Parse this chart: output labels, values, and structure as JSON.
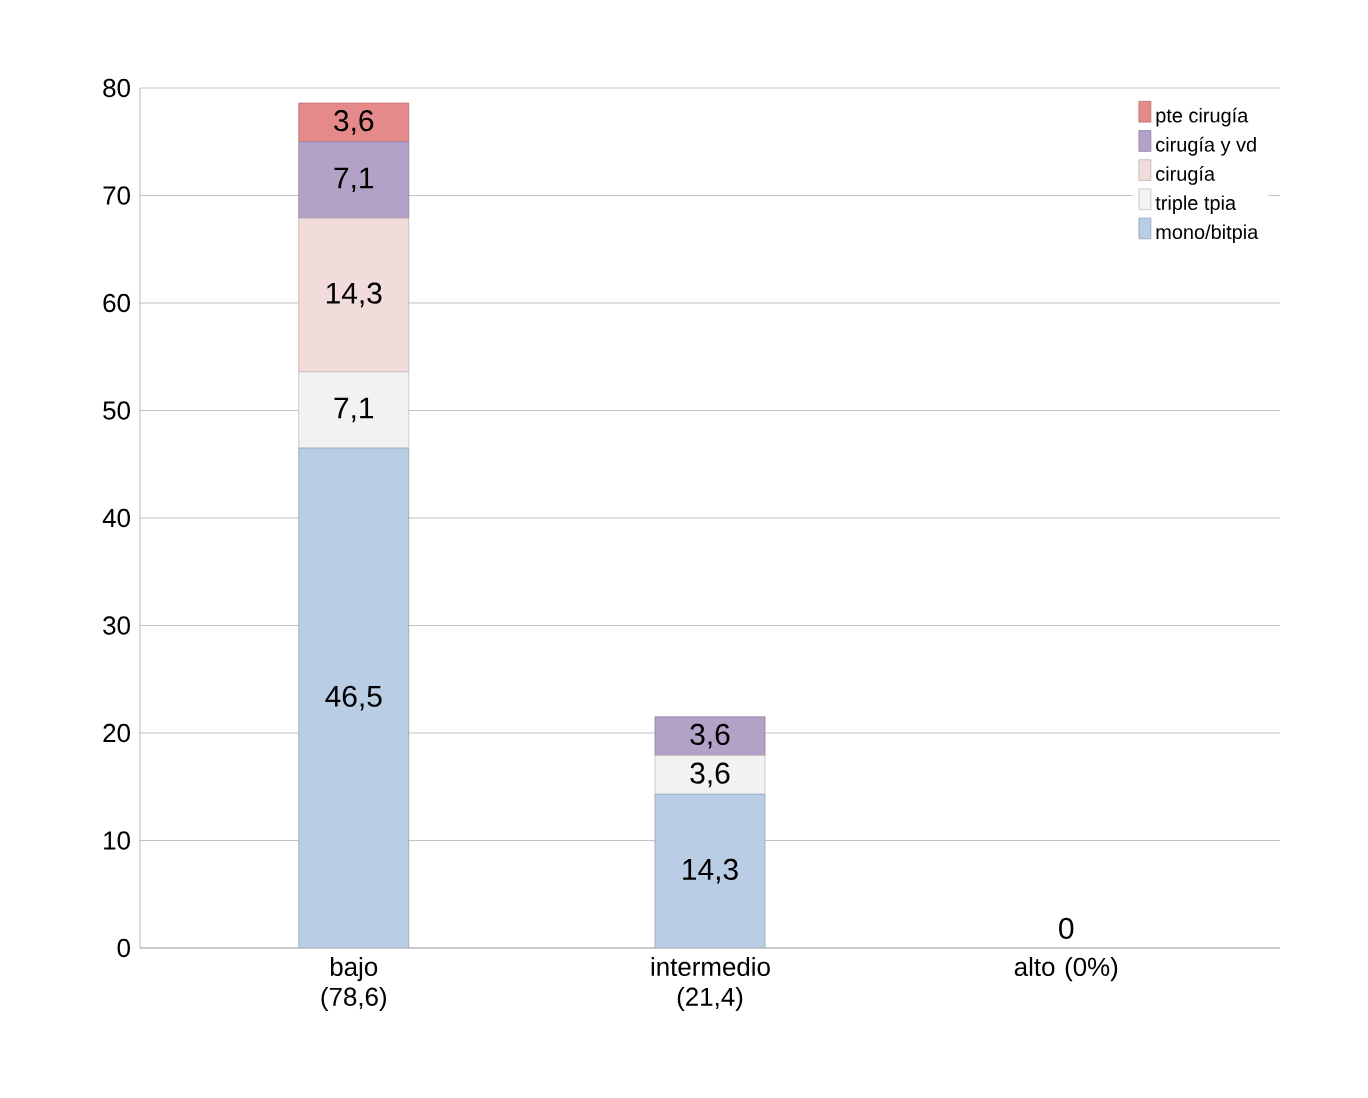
{
  "chart_data": {
    "type": "bar",
    "stacked": true,
    "categories": [
      "bajo (78,6)",
      "intermedio (21,4)",
      "alto (0%)"
    ],
    "series": [
      {
        "name": "mono/bitpia",
        "color": "#b9cde5",
        "values": [
          46.5,
          14.3,
          0
        ],
        "value_labels": [
          "46,5",
          "14,3",
          "0"
        ]
      },
      {
        "name": "triple tpia",
        "color": "#f2f2f2",
        "values": [
          7.1,
          3.6,
          0
        ],
        "value_labels": [
          "7,1",
          "3,6",
          null
        ]
      },
      {
        "name": "cirugía",
        "color": "#f2dcdb",
        "values": [
          14.3,
          0,
          0
        ],
        "value_labels": [
          "14,3",
          null,
          null
        ]
      },
      {
        "name": "cirugía y vd",
        "color": "#b3a2c7",
        "values": [
          7.1,
          3.6,
          0
        ],
        "value_labels": [
          "7,1",
          "3,6",
          null
        ]
      },
      {
        "name": "pte cirugía",
        "color": "#e6898a",
        "values": [
          3.6,
          0,
          0
        ],
        "value_labels": [
          "3,6",
          null,
          null
        ]
      }
    ],
    "ylim": [
      0,
      80
    ],
    "yticks": [
      0,
      10,
      20,
      30,
      40,
      50,
      60,
      70,
      80
    ],
    "grid": "y",
    "legend": "top right"
  }
}
